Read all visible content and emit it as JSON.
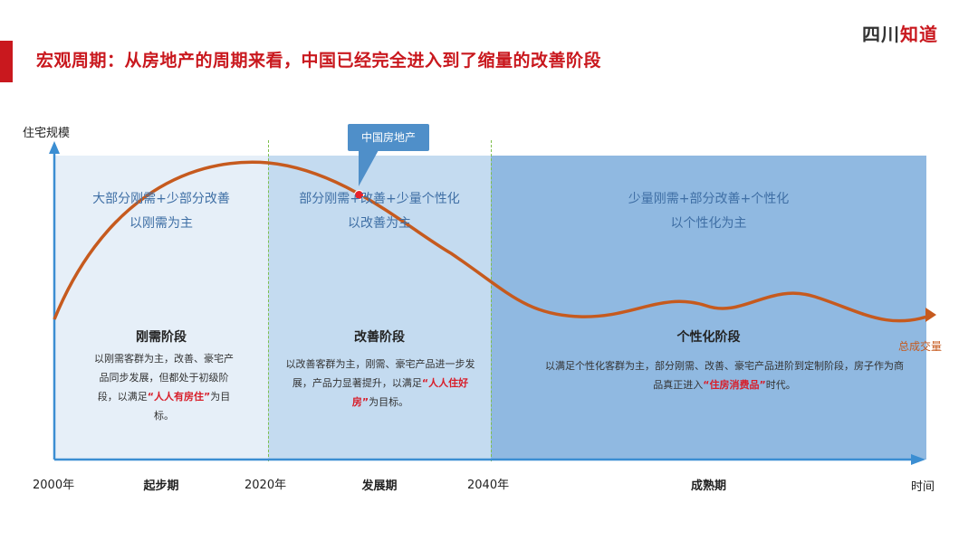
{
  "header": {
    "title": "宏观周期：从房地产的周期来看，中国已经完全进入到了缩量的改善阶段",
    "logo_part1": "四川",
    "logo_part2": "知道"
  },
  "axes": {
    "y_title": "住宅规模",
    "x_title": "时间",
    "years": [
      "2000年",
      "2020年",
      "2040年"
    ]
  },
  "callout": {
    "label": "中国房地产"
  },
  "curve": {
    "label": "总成交量",
    "color": "#c65a1e"
  },
  "colors": {
    "accent": "#c9181e",
    "highlight": "#d81e2a",
    "axis": "#3b8ed2"
  },
  "stages": [
    {
      "phase": "起步期",
      "demand_line1": "大部分刚需+少部分改善",
      "demand_line2": "以刚需为主",
      "name": "刚需阶段",
      "desc_pre": "以刚需客群为主，改善、豪宅产品同步发展，但都处于初级阶段，以满足",
      "desc_highlight": "“人人有房住”",
      "desc_post": "为目标。"
    },
    {
      "phase": "发展期",
      "demand_line1": "部分刚需+改善+少量个性化",
      "demand_line2": "以改善为主",
      "name": "改善阶段",
      "desc_pre": "以改善客群为主，刚需、豪宅产品进一步发展，产品力显著提升，以满足",
      "desc_highlight": "“人人住好房”",
      "desc_post": "为目标。"
    },
    {
      "phase": "成熟期",
      "demand_line1": "少量刚需+部分改善+个性化",
      "demand_line2": "以个性化为主",
      "name": "个性化阶段",
      "desc_pre": "以满足个性化客群为主，部分刚需、改善、豪宅产品进阶到定制阶段，房子作为商品真正进入",
      "desc_highlight": "“住房消费品”",
      "desc_post": "时代。"
    }
  ]
}
